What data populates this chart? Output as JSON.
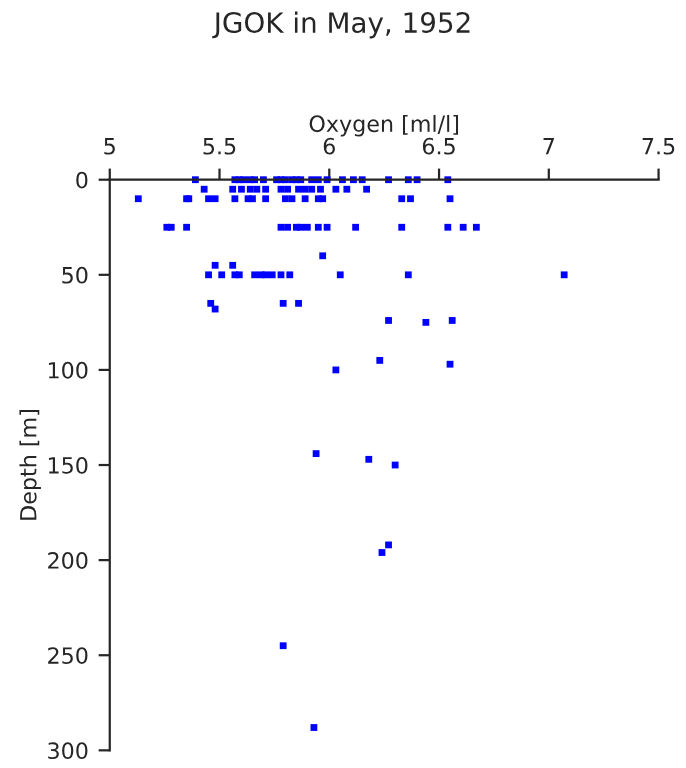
{
  "chart_data": {
    "type": "scatter",
    "title": "JGOK in May, 1952",
    "xlabel": "Oxygen [ml/l]",
    "ylabel": "Depth [m]",
    "xlim": [
      5,
      7.5
    ],
    "xticks": [
      5,
      5.5,
      6,
      6.5,
      7,
      7.5
    ],
    "ylim": [
      300,
      0
    ],
    "yticks": [
      0,
      50,
      100,
      150,
      200,
      250,
      300
    ],
    "grid": false,
    "legend": false,
    "marker": "square",
    "series": [
      {
        "color": "#0000ff",
        "x": [
          5.39,
          5.57,
          5.59,
          5.61,
          5.64,
          5.66,
          5.7,
          5.76,
          5.78,
          5.8,
          5.83,
          5.85,
          5.87,
          5.92,
          5.95,
          5.99,
          6.06,
          6.11,
          6.15,
          6.27,
          6.36,
          6.4,
          6.54,
          5.43,
          5.56,
          5.6,
          5.64,
          5.67,
          5.71,
          5.78,
          5.81,
          5.86,
          5.89,
          5.92,
          5.96,
          6.03,
          6.08,
          6.17,
          5.13,
          5.35,
          5.36,
          5.45,
          5.48,
          5.57,
          5.63,
          5.65,
          5.71,
          5.8,
          5.83,
          5.89,
          5.95,
          5.97,
          6.33,
          6.37,
          6.55,
          5.26,
          5.28,
          5.35,
          5.78,
          5.81,
          5.85,
          5.87,
          5.9,
          5.95,
          5.99,
          6.12,
          6.33,
          6.54,
          6.61,
          6.67,
          5.97,
          5.48,
          5.56,
          5.45,
          5.51,
          5.57,
          5.59,
          5.66,
          5.69,
          5.71,
          5.74,
          5.78,
          5.82,
          6.05,
          6.36,
          7.07,
          5.46,
          5.79,
          5.86,
          5.48,
          6.27,
          6.56,
          6.44,
          6.23,
          6.55,
          6.03,
          5.94,
          6.18,
          6.3,
          6.27,
          6.24,
          5.79,
          5.93
        ],
        "values": [
          0,
          0,
          0,
          0,
          0,
          0,
          0,
          0,
          0,
          0,
          0,
          0,
          0,
          0,
          0,
          0,
          0,
          0,
          0,
          0,
          0,
          0,
          0,
          5,
          5,
          5,
          5,
          5,
          5,
          5,
          5,
          5,
          5,
          5,
          5,
          5,
          5,
          5,
          10,
          10,
          10,
          10,
          10,
          10,
          10,
          10,
          10,
          10,
          10,
          10,
          10,
          10,
          10,
          10,
          10,
          25,
          25,
          25,
          25,
          25,
          25,
          25,
          25,
          25,
          25,
          25,
          25,
          25,
          25,
          25,
          40,
          45,
          45,
          50,
          50,
          50,
          50,
          50,
          50,
          50,
          50,
          50,
          50,
          50,
          50,
          50,
          65,
          65,
          65,
          68,
          74,
          74,
          75,
          95,
          97,
          100,
          144,
          147,
          150,
          192,
          196,
          245,
          288
        ]
      }
    ]
  }
}
